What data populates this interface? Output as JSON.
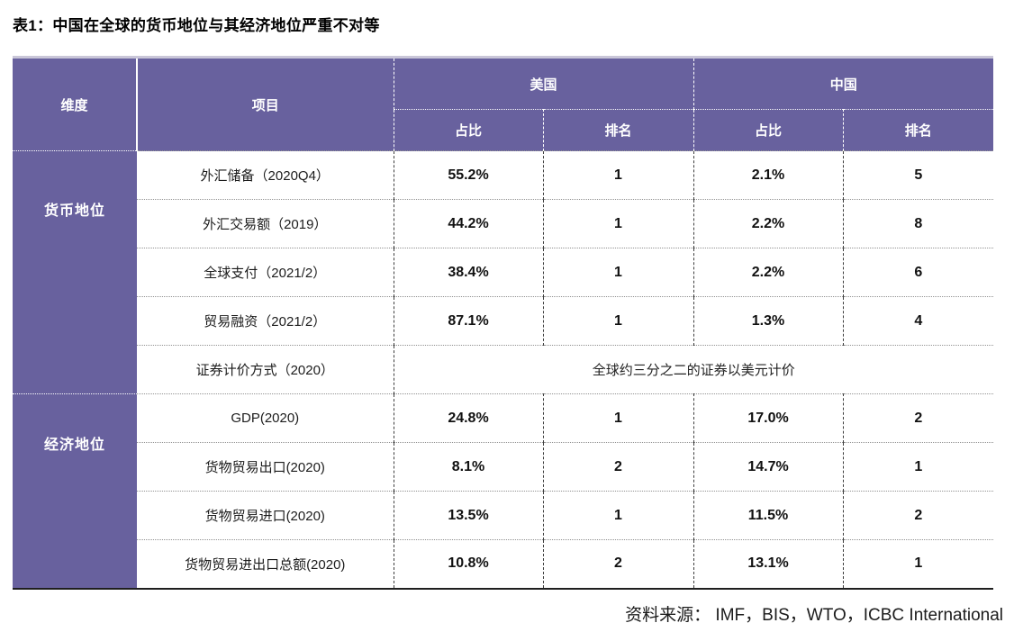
{
  "title": "表1：中国在全球的货币地位与其经济地位严重不对等",
  "source_note": "资料来源： IMF，BIS，WTO，ICBC International",
  "colors": {
    "header_purple": "#68619e",
    "bottom_border": "#1f1f1f",
    "header_text": "#ffffff"
  },
  "chart_data": {
    "type": "table",
    "title": "表1：中国在全球的货币地位与其经济地位严重不对等",
    "source": "资料来源： IMF，BIS，WTO，ICBC International",
    "header": {
      "dimension": "维度",
      "item": "项目",
      "us": "美国",
      "cn": "中国",
      "share": "占比",
      "rank": "排名"
    },
    "groups": [
      {
        "label": "货币地位",
        "rows": [
          {
            "item": "外汇储备（2020Q4）",
            "us_share": "55.2%",
            "us_rank": "1",
            "cn_share": "2.1%",
            "cn_rank": "5"
          },
          {
            "item": "外汇交易额（2019）",
            "us_share": "44.2%",
            "us_rank": "1",
            "cn_share": "2.2%",
            "cn_rank": "8"
          },
          {
            "item": "全球支付（2021/2）",
            "us_share": "38.4%",
            "us_rank": "1",
            "cn_share": "2.2%",
            "cn_rank": "6"
          },
          {
            "item": "贸易融资（2021/2）",
            "us_share": "87.1%",
            "us_rank": "1",
            "cn_share": "1.3%",
            "cn_rank": "4"
          },
          {
            "item": "证券计价方式（2020）",
            "merged_note": "全球约三分之二的证券以美元计价"
          }
        ]
      },
      {
        "label": "经济地位",
        "rows": [
          {
            "item": "GDP(2020)",
            "us_share": "24.8%",
            "us_rank": "1",
            "cn_share": "17.0%",
            "cn_rank": "2"
          },
          {
            "item": "货物贸易出口(2020)",
            "us_share": "8.1%",
            "us_rank": "2",
            "cn_share": "14.7%",
            "cn_rank": "1"
          },
          {
            "item": "货物贸易进口(2020)",
            "us_share": "13.5%",
            "us_rank": "1",
            "cn_share": "11.5%",
            "cn_rank": "2"
          },
          {
            "item": "货物贸易进出口总额(2020)",
            "us_share": "10.8%",
            "us_rank": "2",
            "cn_share": "13.1%",
            "cn_rank": "1"
          }
        ]
      }
    ]
  }
}
